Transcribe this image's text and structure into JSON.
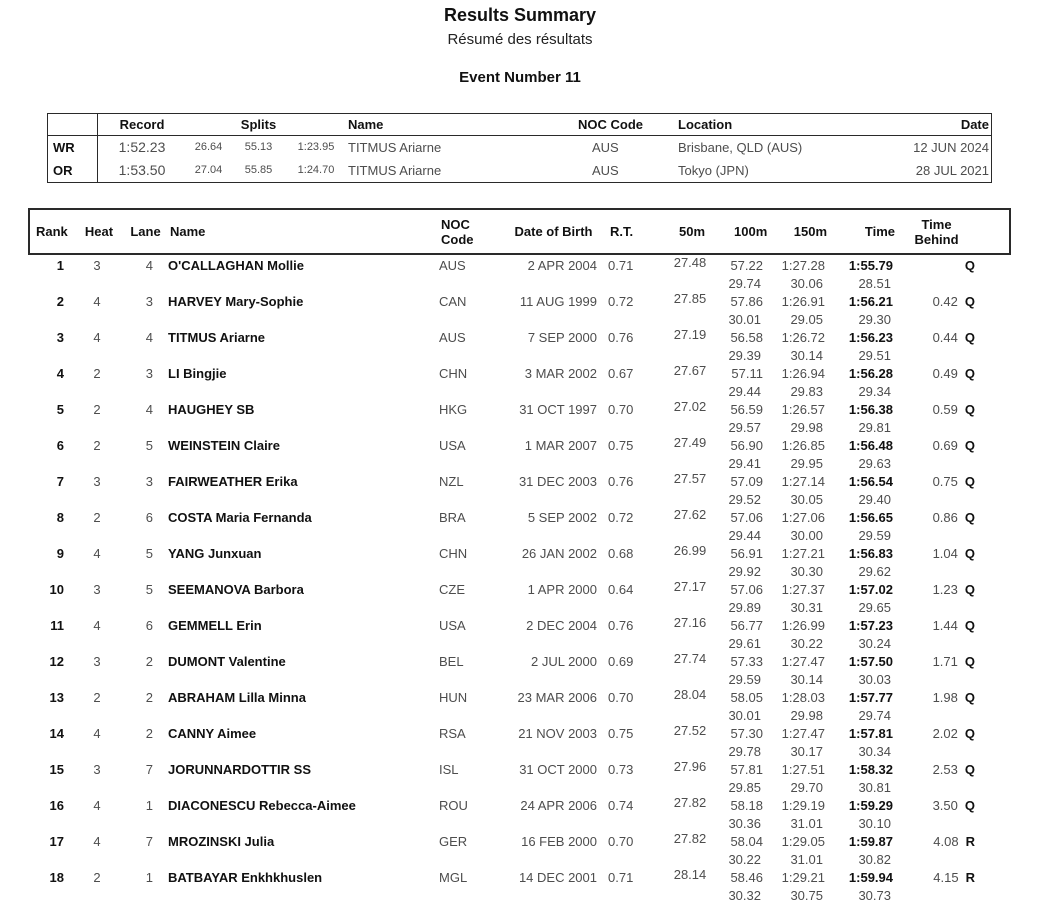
{
  "page": {
    "title": "Results Summary",
    "subtitle": "Résumé des résultats",
    "event_title": "Event Number 11"
  },
  "records": {
    "headers": {
      "record": "Record",
      "splits": "Splits",
      "name": "Name",
      "noc": "NOC Code",
      "location": "Location",
      "date": "Date"
    },
    "rows": [
      {
        "type": "WR",
        "time": "1:52.23",
        "split1": "26.64",
        "split2": "55.13",
        "split3": "1:23.95",
        "name": "TITMUS Ariarne",
        "noc": "AUS",
        "location": "Brisbane, QLD (AUS)",
        "date": "12 JUN 2024"
      },
      {
        "type": "OR",
        "time": "1:53.50",
        "split1": "27.04",
        "split2": "55.85",
        "split3": "1:24.70",
        "name": "TITMUS Ariarne",
        "noc": "AUS",
        "location": "Tokyo (JPN)",
        "date": "28 JUL 2021"
      }
    ]
  },
  "results": {
    "headers": {
      "rank": "Rank",
      "heat": "Heat",
      "lane": "Lane",
      "name": "Name",
      "noc_line1": "NOC",
      "noc_line2": "Code",
      "dob": "Date of Birth",
      "rt": "R.T.",
      "d50": "50m",
      "d100": "100m",
      "d150": "150m",
      "time": "Time",
      "behind_line1": "Time",
      "behind_line2": "Behind"
    },
    "rows": [
      {
        "rank": "1",
        "heat": "3",
        "lane": "4",
        "name": "O'CALLAGHAN Mollie",
        "noc": "AUS",
        "dob": "2 APR 2004",
        "rt": "0.71",
        "t50": "27.48",
        "t100": "57.22",
        "t100_split": "29.74",
        "t150": "1:27.28",
        "t150_split": "30.06",
        "time": "1:55.79",
        "final_split": "28.51",
        "behind": "",
        "qualifier": "Q"
      },
      {
        "rank": "2",
        "heat": "4",
        "lane": "3",
        "name": "HARVEY Mary-Sophie",
        "noc": "CAN",
        "dob": "11 AUG 1999",
        "rt": "0.72",
        "t50": "27.85",
        "t100": "57.86",
        "t100_split": "30.01",
        "t150": "1:26.91",
        "t150_split": "29.05",
        "time": "1:56.21",
        "final_split": "29.30",
        "behind": "0.42",
        "qualifier": "Q"
      },
      {
        "rank": "3",
        "heat": "4",
        "lane": "4",
        "name": "TITMUS Ariarne",
        "noc": "AUS",
        "dob": "7 SEP 2000",
        "rt": "0.76",
        "t50": "27.19",
        "t100": "56.58",
        "t100_split": "29.39",
        "t150": "1:26.72",
        "t150_split": "30.14",
        "time": "1:56.23",
        "final_split": "29.51",
        "behind": "0.44",
        "qualifier": "Q"
      },
      {
        "rank": "4",
        "heat": "2",
        "lane": "3",
        "name": "LI Bingjie",
        "noc": "CHN",
        "dob": "3 MAR 2002",
        "rt": "0.67",
        "t50": "27.67",
        "t100": "57.11",
        "t100_split": "29.44",
        "t150": "1:26.94",
        "t150_split": "29.83",
        "time": "1:56.28",
        "final_split": "29.34",
        "behind": "0.49",
        "qualifier": "Q"
      },
      {
        "rank": "5",
        "heat": "2",
        "lane": "4",
        "name": "HAUGHEY SB",
        "noc": "HKG",
        "dob": "31 OCT 1997",
        "rt": "0.70",
        "t50": "27.02",
        "t100": "56.59",
        "t100_split": "29.57",
        "t150": "1:26.57",
        "t150_split": "29.98",
        "time": "1:56.38",
        "final_split": "29.81",
        "behind": "0.59",
        "qualifier": "Q"
      },
      {
        "rank": "6",
        "heat": "2",
        "lane": "5",
        "name": "WEINSTEIN Claire",
        "noc": "USA",
        "dob": "1 MAR 2007",
        "rt": "0.75",
        "t50": "27.49",
        "t100": "56.90",
        "t100_split": "29.41",
        "t150": "1:26.85",
        "t150_split": "29.95",
        "time": "1:56.48",
        "final_split": "29.63",
        "behind": "0.69",
        "qualifier": "Q"
      },
      {
        "rank": "7",
        "heat": "3",
        "lane": "3",
        "name": "FAIRWEATHER Erika",
        "noc": "NZL",
        "dob": "31 DEC 2003",
        "rt": "0.76",
        "t50": "27.57",
        "t100": "57.09",
        "t100_split": "29.52",
        "t150": "1:27.14",
        "t150_split": "30.05",
        "time": "1:56.54",
        "final_split": "29.40",
        "behind": "0.75",
        "qualifier": "Q"
      },
      {
        "rank": "8",
        "heat": "2",
        "lane": "6",
        "name": "COSTA Maria Fernanda",
        "noc": "BRA",
        "dob": "5 SEP 2002",
        "rt": "0.72",
        "t50": "27.62",
        "t100": "57.06",
        "t100_split": "29.44",
        "t150": "1:27.06",
        "t150_split": "30.00",
        "time": "1:56.65",
        "final_split": "29.59",
        "behind": "0.86",
        "qualifier": "Q"
      },
      {
        "rank": "9",
        "heat": "4",
        "lane": "5",
        "name": "YANG Junxuan",
        "noc": "CHN",
        "dob": "26 JAN 2002",
        "rt": "0.68",
        "t50": "26.99",
        "t100": "56.91",
        "t100_split": "29.92",
        "t150": "1:27.21",
        "t150_split": "30.30",
        "time": "1:56.83",
        "final_split": "29.62",
        "behind": "1.04",
        "qualifier": "Q"
      },
      {
        "rank": "10",
        "heat": "3",
        "lane": "5",
        "name": "SEEMANOVA Barbora",
        "noc": "CZE",
        "dob": "1 APR 2000",
        "rt": "0.64",
        "t50": "27.17",
        "t100": "57.06",
        "t100_split": "29.89",
        "t150": "1:27.37",
        "t150_split": "30.31",
        "time": "1:57.02",
        "final_split": "29.65",
        "behind": "1.23",
        "qualifier": "Q"
      },
      {
        "rank": "11",
        "heat": "4",
        "lane": "6",
        "name": "GEMMELL Erin",
        "noc": "USA",
        "dob": "2 DEC 2004",
        "rt": "0.76",
        "t50": "27.16",
        "t100": "56.77",
        "t100_split": "29.61",
        "t150": "1:26.99",
        "t150_split": "30.22",
        "time": "1:57.23",
        "final_split": "30.24",
        "behind": "1.44",
        "qualifier": "Q"
      },
      {
        "rank": "12",
        "heat": "3",
        "lane": "2",
        "name": "DUMONT Valentine",
        "noc": "BEL",
        "dob": "2 JUL 2000",
        "rt": "0.69",
        "t50": "27.74",
        "t100": "57.33",
        "t100_split": "29.59",
        "t150": "1:27.47",
        "t150_split": "30.14",
        "time": "1:57.50",
        "final_split": "30.03",
        "behind": "1.71",
        "qualifier": "Q"
      },
      {
        "rank": "13",
        "heat": "2",
        "lane": "2",
        "name": "ABRAHAM Lilla Minna",
        "noc": "HUN",
        "dob": "23 MAR 2006",
        "rt": "0.70",
        "t50": "28.04",
        "t100": "58.05",
        "t100_split": "30.01",
        "t150": "1:28.03",
        "t150_split": "29.98",
        "time": "1:57.77",
        "final_split": "29.74",
        "behind": "1.98",
        "qualifier": "Q"
      },
      {
        "rank": "14",
        "heat": "4",
        "lane": "2",
        "name": "CANNY Aimee",
        "noc": "RSA",
        "dob": "21 NOV 2003",
        "rt": "0.75",
        "t50": "27.52",
        "t100": "57.30",
        "t100_split": "29.78",
        "t150": "1:27.47",
        "t150_split": "30.17",
        "time": "1:57.81",
        "final_split": "30.34",
        "behind": "2.02",
        "qualifier": "Q"
      },
      {
        "rank": "15",
        "heat": "3",
        "lane": "7",
        "name": "JORUNNARDOTTIR SS",
        "noc": "ISL",
        "dob": "31 OCT 2000",
        "rt": "0.73",
        "t50": "27.96",
        "t100": "57.81",
        "t100_split": "29.85",
        "t150": "1:27.51",
        "t150_split": "29.70",
        "time": "1:58.32",
        "final_split": "30.81",
        "behind": "2.53",
        "qualifier": "Q"
      },
      {
        "rank": "16",
        "heat": "4",
        "lane": "1",
        "name": "DIACONESCU Rebecca-Aimee",
        "noc": "ROU",
        "dob": "24 APR 2006",
        "rt": "0.74",
        "t50": "27.82",
        "t100": "58.18",
        "t100_split": "30.36",
        "t150": "1:29.19",
        "t150_split": "31.01",
        "time": "1:59.29",
        "final_split": "30.10",
        "behind": "3.50",
        "qualifier": "Q"
      },
      {
        "rank": "17",
        "heat": "4",
        "lane": "7",
        "name": "MROZINSKI Julia",
        "noc": "GER",
        "dob": "16 FEB 2000",
        "rt": "0.70",
        "t50": "27.82",
        "t100": "58.04",
        "t100_split": "30.22",
        "t150": "1:29.05",
        "t150_split": "31.01",
        "time": "1:59.87",
        "final_split": "30.82",
        "behind": "4.08",
        "qualifier": "R"
      },
      {
        "rank": "18",
        "heat": "2",
        "lane": "1",
        "name": "BATBAYAR Enkhkhuslen",
        "noc": "MGL",
        "dob": "14 DEC 2001",
        "rt": "0.71",
        "t50": "28.14",
        "t100": "58.46",
        "t100_split": "30.32",
        "t150": "1:29.21",
        "t150_split": "30.75",
        "time": "1:59.94",
        "final_split": "30.73",
        "behind": "4.15",
        "qualifier": "R"
      }
    ]
  }
}
